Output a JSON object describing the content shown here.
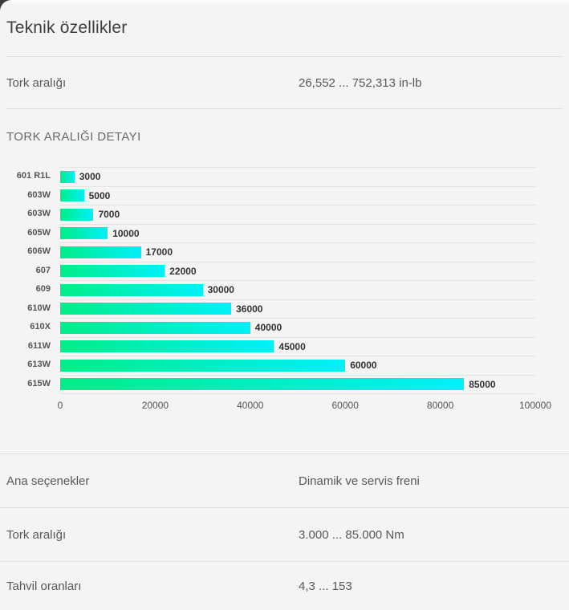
{
  "page": {
    "title": "Teknik özellikler",
    "background_color": "#f4f4f4",
    "corner_background_color": "#3b3b3b"
  },
  "top_spec": {
    "label": "Tork aralığı",
    "value": "26,552 ... 752,313 in-lb"
  },
  "section": {
    "header": "TORK ARALIĞI DETAYI"
  },
  "chart_data": {
    "type": "bar",
    "orientation": "horizontal",
    "title": "TORK ARALIĞI DETAYI",
    "categories": [
      "601 R1L",
      "603W",
      "603W",
      "605W",
      "606W",
      "607",
      "609",
      "610W",
      "610X",
      "611W",
      "613W",
      "615W"
    ],
    "values": [
      3000,
      5000,
      7000,
      10000,
      17000,
      22000,
      30000,
      36000,
      40000,
      45000,
      60000,
      85000
    ],
    "xlim": [
      0,
      100000
    ],
    "x_ticks": [
      0,
      20000,
      40000,
      60000,
      80000,
      100000
    ],
    "grid": "horizontal row separator lines",
    "legend": "none",
    "bar_gradient_start": "#00ed87",
    "bar_gradient_end": "#00f0fa",
    "gridline_color": "#e3e3e3"
  },
  "bottom_specs": [
    {
      "label": "Ana seçenekler",
      "value": "Dinamik ve servis freni"
    },
    {
      "label": "Tork aralığı",
      "value": "3.000 ... 85.000 Nm"
    },
    {
      "label": "Tahvil oranları",
      "value": "4,3 ... 153"
    }
  ]
}
